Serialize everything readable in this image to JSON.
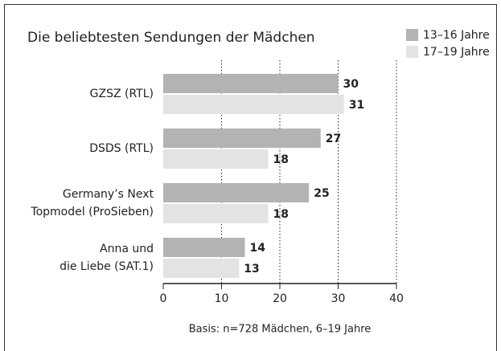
{
  "chart_data": {
    "type": "bar",
    "orientation": "horizontal",
    "title": "Die beliebtesten Sendungen der Mädchen",
    "categories": [
      "GZSZ (RTL)",
      "DSDS (RTL)",
      "Germany’s Next\nTopmodel (ProSieben)",
      "Anna und\ndie Liebe (SAT.1)"
    ],
    "series": [
      {
        "name": "13–16 Jahre",
        "color": "#b3b3b3",
        "values": [
          30,
          27,
          25,
          14
        ]
      },
      {
        "name": "17–19 Jahre",
        "color": "#e3e3e3",
        "values": [
          31,
          18,
          18,
          13
        ]
      }
    ],
    "xlim": [
      0,
      40
    ],
    "xticks": [
      0,
      10,
      20,
      30,
      40
    ],
    "grid": true,
    "legend": "top-right",
    "note": "Basis: n=728 Mädchen, 6–19 Jahre"
  }
}
